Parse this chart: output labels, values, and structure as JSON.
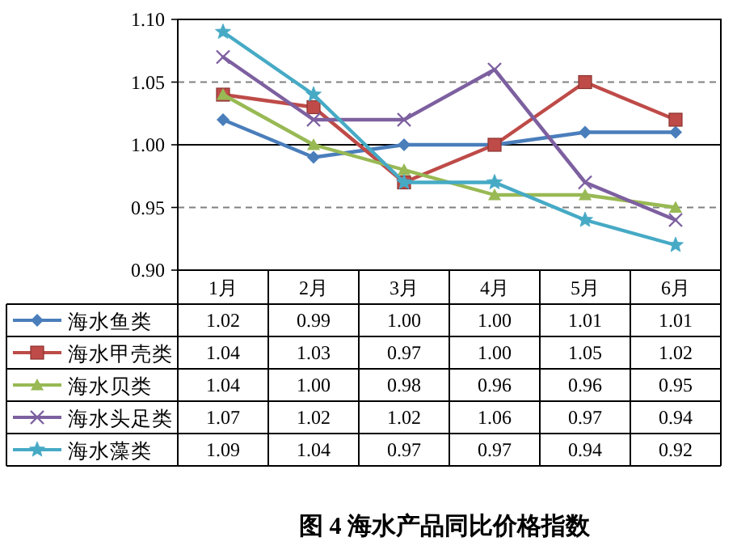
{
  "chart_data": {
    "type": "line",
    "title": "图 4  海水产品同比价格指数",
    "categories": [
      "1月",
      "2月",
      "3月",
      "4月",
      "5月",
      "6月"
    ],
    "series": [
      {
        "name": "海水鱼类",
        "color": "#4a7ebb",
        "marker": "diamond",
        "values": [
          1.02,
          0.99,
          1.0,
          1.0,
          1.01,
          1.01
        ],
        "value_labels": [
          "1.02",
          "0.99",
          "1.00",
          "1.00",
          "1.01",
          "1.01"
        ]
      },
      {
        "name": "海水甲壳类",
        "color": "#be4b48",
        "marker": "square",
        "values": [
          1.04,
          1.03,
          0.97,
          1.0,
          1.05,
          1.02
        ],
        "value_labels": [
          "1.04",
          "1.03",
          "0.97",
          "1.00",
          "1.05",
          "1.02"
        ]
      },
      {
        "name": "海水贝类",
        "color": "#98b954",
        "marker": "triangle",
        "values": [
          1.04,
          1.0,
          0.98,
          0.96,
          0.96,
          0.95
        ],
        "value_labels": [
          "1.04",
          "1.00",
          "0.98",
          "0.96",
          "0.96",
          "0.95"
        ]
      },
      {
        "name": "海水头足类",
        "color": "#7d60a0",
        "marker": "cross",
        "values": [
          1.07,
          1.02,
          1.02,
          1.06,
          0.97,
          0.94
        ],
        "value_labels": [
          "1.07",
          "1.02",
          "1.02",
          "1.06",
          "0.97",
          "0.94"
        ]
      },
      {
        "name": "海水藻类",
        "color": "#46aac5",
        "marker": "star",
        "values": [
          1.09,
          1.04,
          0.97,
          0.97,
          0.94,
          0.92
        ],
        "value_labels": [
          "1.09",
          "1.04",
          "0.97",
          "0.97",
          "0.94",
          "0.92"
        ]
      }
    ],
    "ylim": [
      0.9,
      1.1
    ],
    "yticks": [
      "0.90",
      "0.95",
      "1.00",
      "1.05",
      "1.10"
    ],
    "ref_lines": [
      {
        "axis": "y",
        "value": 1.0
      },
      {
        "axis": "y",
        "value": 0.95,
        "line_style": "dashed",
        "color": "#808080"
      },
      {
        "axis": "y",
        "value": 1.05,
        "line_style": "dashed",
        "color": "#808080"
      }
    ],
    "legend": "left"
  }
}
